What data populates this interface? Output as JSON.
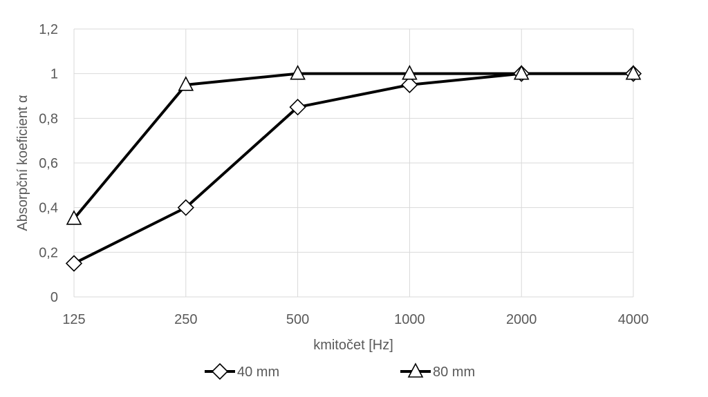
{
  "chart_data": {
    "type": "line",
    "title": "",
    "xlabel": "kmitočet [Hz]",
    "ylabel": "Absorpční koeficient α",
    "categories": [
      "125",
      "250",
      "500",
      "1000",
      "2000",
      "4000"
    ],
    "ylim": [
      0,
      1.2
    ],
    "yticks": [
      "0",
      "0,2",
      "0,4",
      "0,6",
      "0,8",
      "1",
      "1,2"
    ],
    "ytick_values": [
      0,
      0.2,
      0.4,
      0.6,
      0.8,
      1,
      1.2
    ],
    "grid": true,
    "legend_position": "bottom",
    "series": [
      {
        "name": "40 mm",
        "marker": "diamond",
        "color": "#000000",
        "values": [
          0.15,
          0.4,
          0.85,
          0.95,
          1.0,
          1.0
        ]
      },
      {
        "name": "80 mm",
        "marker": "triangle",
        "color": "#000000",
        "values": [
          0.35,
          0.95,
          1.0,
          1.0,
          1.0,
          1.0
        ]
      }
    ]
  }
}
